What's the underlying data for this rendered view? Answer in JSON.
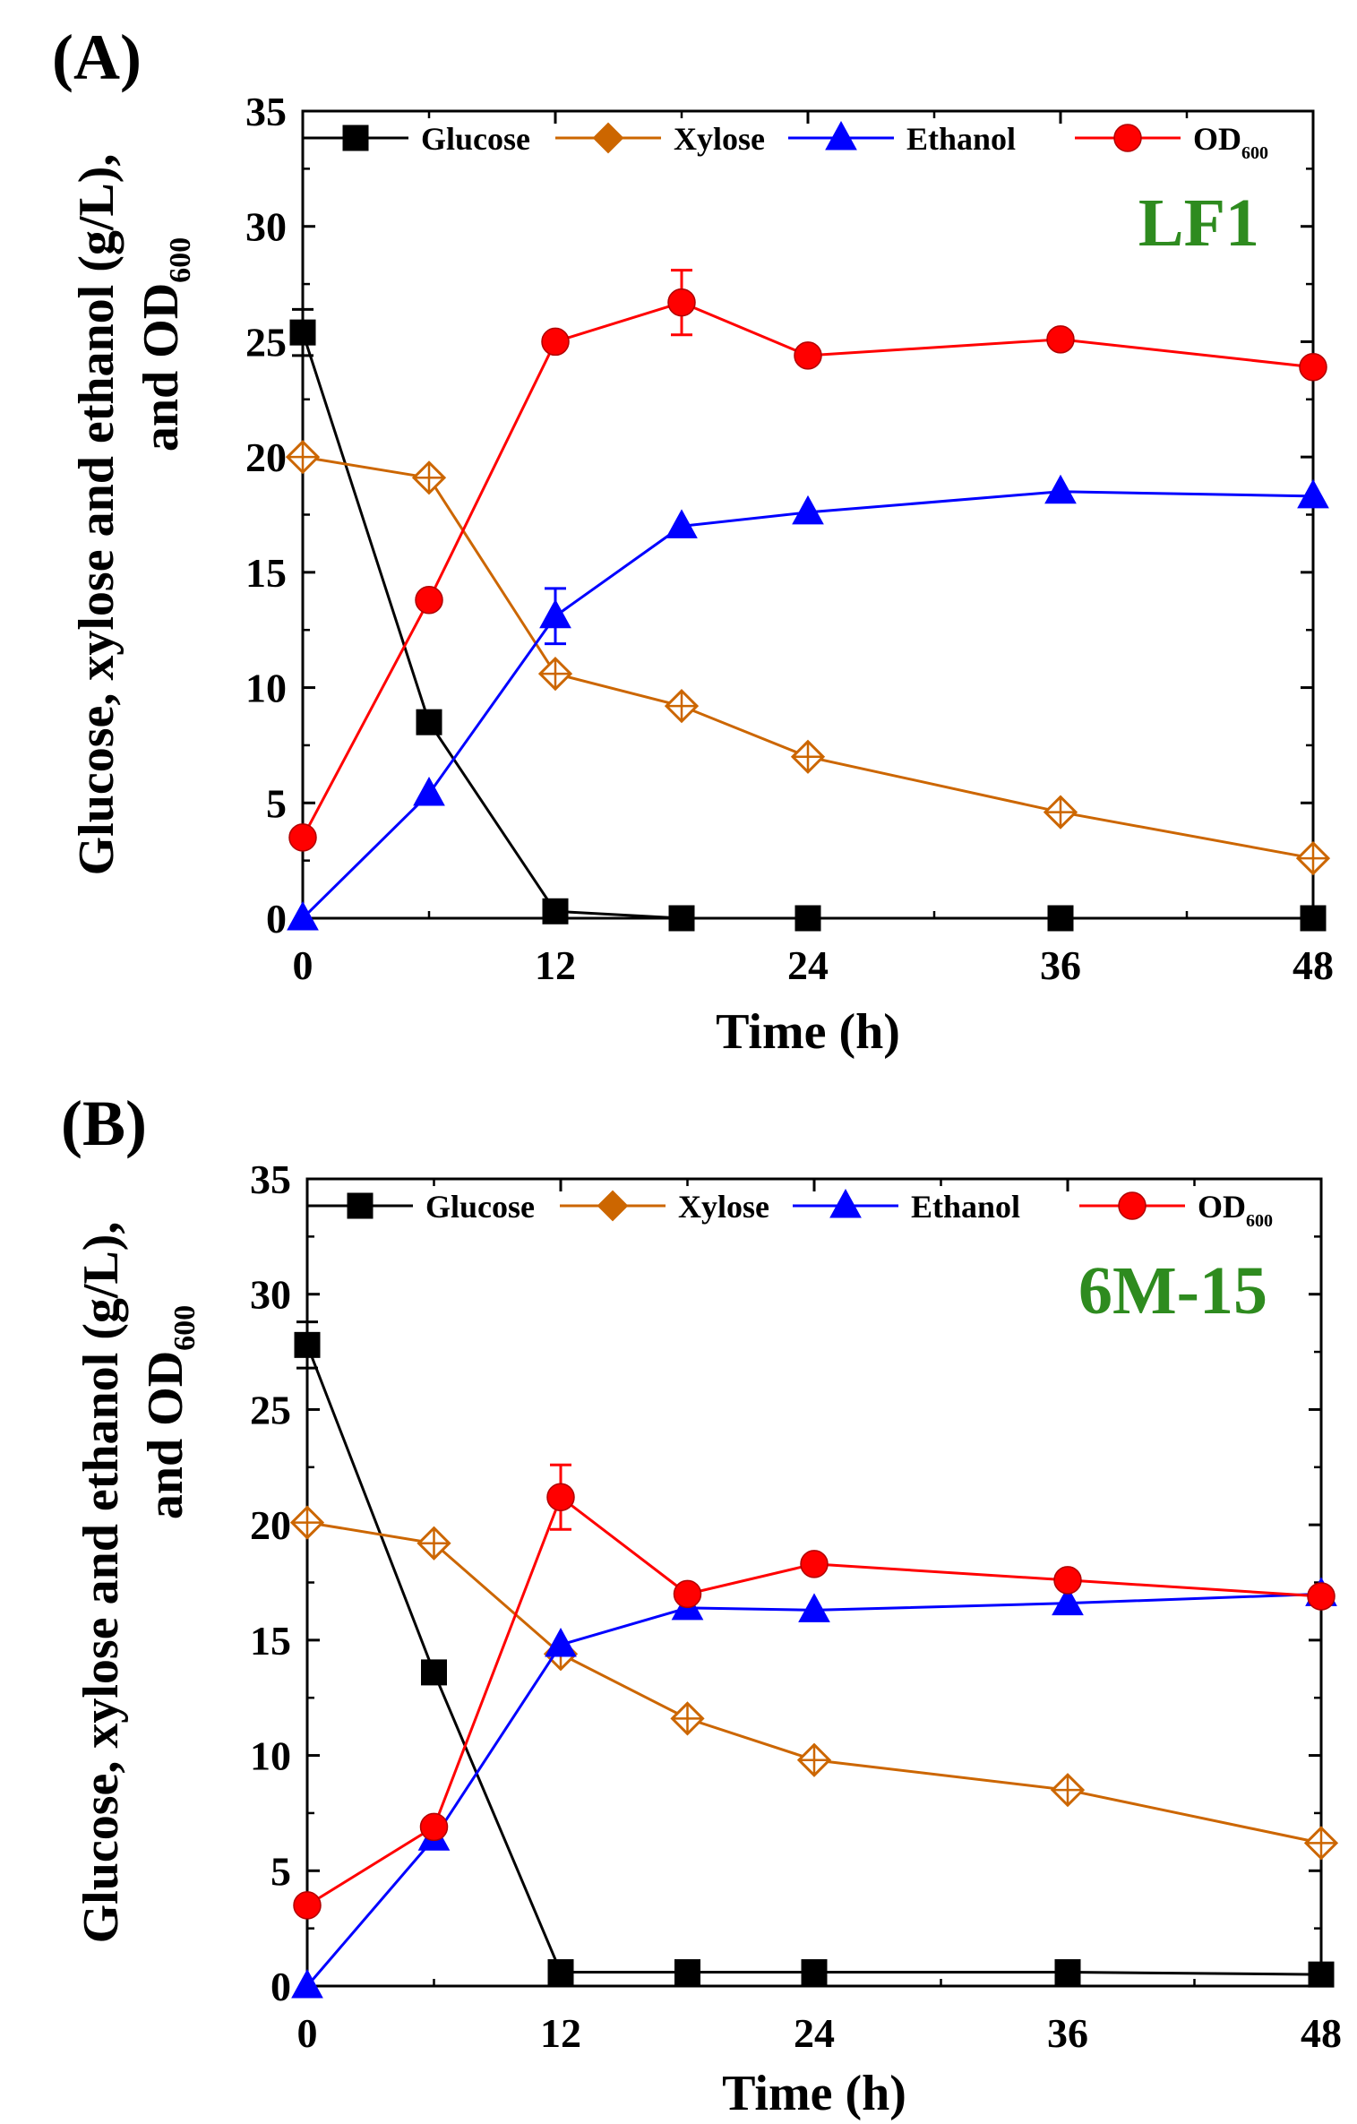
{
  "chart_data": [
    {
      "type": "line",
      "panel": "(A)",
      "strain": "LF1",
      "strain_color": "#2e8b1f",
      "xlabel": "Time (h)",
      "ylabel_line1": "Glucose, xylose and ethanol (g/L),",
      "ylabel_line2_main": "and OD",
      "ylabel_line2_sub": "600",
      "xlim": [
        0,
        48
      ],
      "ylim": [
        0,
        35
      ],
      "xticks": [
        "0",
        "12",
        "24",
        "36",
        "48"
      ],
      "yticks": [
        "0",
        "5",
        "10",
        "15",
        "20",
        "25",
        "30",
        "35"
      ],
      "legend_position": "top",
      "series": [
        {
          "name": "Glucose",
          "sub": "",
          "color": "#000000",
          "marker": "square",
          "x": [
            0,
            6,
            12,
            18,
            24,
            36,
            48
          ],
          "y": [
            25.4,
            8.5,
            0.3,
            0,
            0,
            0,
            0
          ],
          "err": [
            1.0,
            0,
            0,
            0,
            0,
            0,
            0
          ]
        },
        {
          "name": "Xylose",
          "sub": "",
          "color": "#cc6600",
          "marker": "diamond",
          "x": [
            0,
            6,
            12,
            18,
            24,
            36,
            48
          ],
          "y": [
            20.0,
            19.1,
            10.6,
            9.2,
            7.0,
            4.6,
            2.6
          ],
          "err": [
            0,
            0,
            0,
            0,
            0,
            0,
            0
          ]
        },
        {
          "name": "Ethanol",
          "sub": "",
          "color": "#0000ff",
          "marker": "triangle",
          "x": [
            0,
            6,
            12,
            18,
            24,
            36,
            48
          ],
          "y": [
            0,
            5.4,
            13.1,
            17.0,
            17.6,
            18.5,
            18.3
          ],
          "err": [
            0,
            0,
            1.2,
            0,
            0,
            0,
            0
          ]
        },
        {
          "name": "OD",
          "sub": "600",
          "color": "#ff0000",
          "marker": "circle",
          "x": [
            0,
            6,
            12,
            18,
            24,
            36,
            48
          ],
          "y": [
            3.5,
            13.8,
            25.0,
            26.7,
            24.4,
            25.1,
            23.9
          ],
          "err": [
            0,
            0,
            0,
            1.4,
            0,
            0,
            0
          ]
        }
      ]
    },
    {
      "type": "line",
      "panel": "(B)",
      "strain": "6M-15",
      "strain_color": "#2e8b1f",
      "xlabel": "Time (h)",
      "ylabel_line1": "Glucose, xylose and ethanol (g/L),",
      "ylabel_line2_main": "and OD",
      "ylabel_line2_sub": "600",
      "xlim": [
        0,
        48
      ],
      "ylim": [
        0,
        35
      ],
      "xticks": [
        "0",
        "12",
        "24",
        "36",
        "48"
      ],
      "yticks": [
        "0",
        "5",
        "10",
        "15",
        "20",
        "25",
        "30",
        "35"
      ],
      "legend_position": "top",
      "series": [
        {
          "name": "Glucose",
          "sub": "",
          "color": "#000000",
          "marker": "square",
          "x": [
            0,
            6,
            12,
            18,
            24,
            36,
            48
          ],
          "y": [
            27.8,
            13.6,
            0.6,
            0.6,
            0.6,
            0.6,
            0.5
          ],
          "err": [
            1.0,
            0,
            0,
            0,
            0,
            0,
            0
          ]
        },
        {
          "name": "Xylose",
          "sub": "",
          "color": "#cc6600",
          "marker": "diamond",
          "x": [
            0,
            6,
            12,
            18,
            24,
            36,
            48
          ],
          "y": [
            20.1,
            19.2,
            14.4,
            11.6,
            9.8,
            8.5,
            6.2
          ],
          "err": [
            0,
            0,
            0,
            0,
            0,
            0,
            0
          ]
        },
        {
          "name": "Ethanol",
          "sub": "",
          "color": "#0000ff",
          "marker": "triangle",
          "x": [
            0,
            6,
            12,
            18,
            24,
            36,
            48
          ],
          "y": [
            0,
            6.4,
            14.8,
            16.4,
            16.3,
            16.6,
            17.0
          ],
          "err": [
            0,
            0,
            0,
            0,
            0,
            0,
            0
          ]
        },
        {
          "name": "OD",
          "sub": "600",
          "color": "#ff0000",
          "marker": "circle",
          "x": [
            0,
            6,
            12,
            18,
            24,
            36,
            48
          ],
          "y": [
            3.5,
            6.9,
            21.2,
            17.0,
            18.3,
            17.6,
            16.9
          ],
          "err": [
            0,
            0,
            1.4,
            0,
            0,
            0,
            0
          ]
        }
      ]
    }
  ]
}
